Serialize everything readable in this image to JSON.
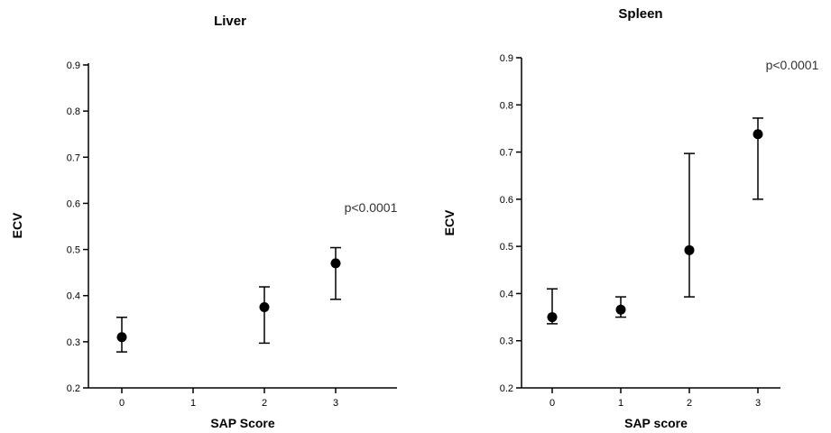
{
  "chart_data": [
    {
      "type": "scatter",
      "title": "Liver",
      "xlabel": "SAP Score",
      "ylabel": "ECV",
      "categories": [
        "0",
        "1",
        "2",
        "3"
      ],
      "x": [
        0,
        2,
        3
      ],
      "values": [
        0.31,
        0.375,
        0.47
      ],
      "error_low": [
        0.278,
        0.297,
        0.392
      ],
      "error_high": [
        0.353,
        0.419,
        0.504
      ],
      "ylim": [
        0.2,
        0.9
      ],
      "yticks": [
        "0.2",
        "0.3",
        "0.4",
        "0.5",
        "0.6",
        "0.7",
        "0.8",
        "0.9"
      ],
      "annotation": "p<0.0001",
      "annotation_y": 0.6,
      "grid": false
    },
    {
      "type": "scatter",
      "title": "Spleen",
      "xlabel": "SAP score",
      "ylabel": "ECV",
      "categories": [
        "0",
        "1",
        "2",
        "3"
      ],
      "x": [
        0,
        1,
        2,
        3
      ],
      "values": [
        0.35,
        0.366,
        0.492,
        0.738
      ],
      "error_low": [
        0.336,
        0.35,
        0.393,
        0.6
      ],
      "error_high": [
        0.41,
        0.393,
        0.697,
        0.772
      ],
      "ylim": [
        0.2,
        0.9
      ],
      "yticks": [
        "0.2",
        "0.3",
        "0.4",
        "0.5",
        "0.6",
        "0.7",
        "0.8",
        "0.9"
      ],
      "annotation": "p<0.0001",
      "annotation_y": 0.89,
      "grid": false
    }
  ]
}
